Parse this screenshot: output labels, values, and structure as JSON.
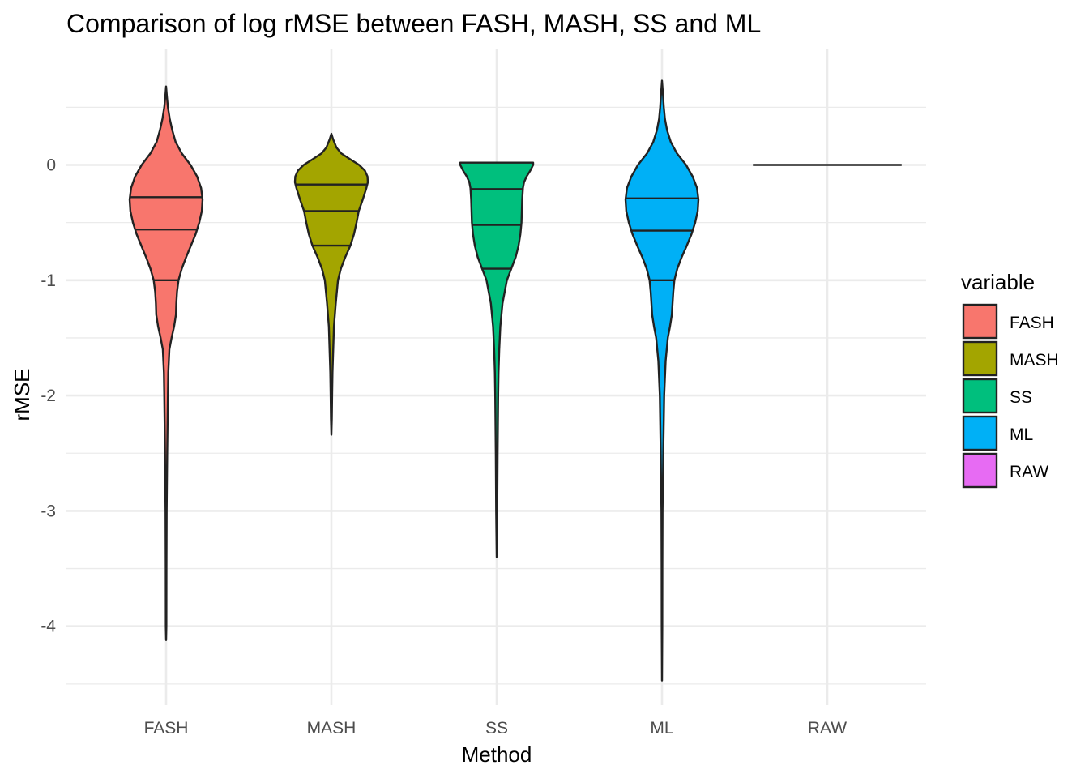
{
  "chart_data": {
    "type": "violin",
    "title": "Comparison of log rMSE between FASH, MASH, SS and ML",
    "xlabel": "Method",
    "ylabel": "rMSE",
    "categories": [
      "FASH",
      "MASH",
      "SS",
      "ML",
      "RAW"
    ],
    "y_ticks": [
      0,
      -1,
      -2,
      -3,
      -4
    ],
    "y_tick_labels": [
      "0",
      "-1",
      "-2",
      "-3",
      "-4"
    ],
    "ylim": [
      -4.7,
      0.97
    ],
    "grid": true,
    "legend": {
      "title": "variable",
      "position": "right",
      "entries": [
        "FASH",
        "MASH",
        "SS",
        "ML",
        "RAW"
      ]
    },
    "series": [
      {
        "name": "FASH",
        "color": "#F8766D",
        "min": -4.12,
        "max": 0.68,
        "quantiles": [
          -0.28,
          -0.56,
          -1.0
        ],
        "density": [
          [
            0.68,
            0.0
          ],
          [
            0.6,
            0.02
          ],
          [
            0.5,
            0.05
          ],
          [
            0.4,
            0.1
          ],
          [
            0.3,
            0.17
          ],
          [
            0.2,
            0.26
          ],
          [
            0.1,
            0.43
          ],
          [
            0.0,
            0.67
          ],
          [
            -0.1,
            0.85
          ],
          [
            -0.2,
            0.96
          ],
          [
            -0.3,
            1.0
          ],
          [
            -0.4,
            0.98
          ],
          [
            -0.5,
            0.91
          ],
          [
            -0.6,
            0.81
          ],
          [
            -0.7,
            0.68
          ],
          [
            -0.8,
            0.55
          ],
          [
            -0.9,
            0.43
          ],
          [
            -1.0,
            0.34
          ],
          [
            -1.1,
            0.3
          ],
          [
            -1.2,
            0.28
          ],
          [
            -1.3,
            0.27
          ],
          [
            -1.4,
            0.22
          ],
          [
            -1.5,
            0.15
          ],
          [
            -1.6,
            0.09
          ],
          [
            -1.8,
            0.06
          ],
          [
            -2.0,
            0.05
          ],
          [
            -2.5,
            0.03
          ],
          [
            -3.0,
            0.015
          ],
          [
            -3.5,
            0.01
          ],
          [
            -4.0,
            0.008
          ],
          [
            -4.12,
            0.0
          ]
        ]
      },
      {
        "name": "MASH",
        "color": "#A3A500",
        "min": -2.34,
        "max": 0.27,
        "quantiles": [
          -0.17,
          -0.4,
          -0.7
        ],
        "density": [
          [
            0.27,
            0.0
          ],
          [
            0.22,
            0.05
          ],
          [
            0.15,
            0.14
          ],
          [
            0.1,
            0.27
          ],
          [
            0.05,
            0.51
          ],
          [
            0.0,
            0.76
          ],
          [
            -0.05,
            0.92
          ],
          [
            -0.1,
            0.99
          ],
          [
            -0.15,
            1.0
          ],
          [
            -0.2,
            0.96
          ],
          [
            -0.3,
            0.86
          ],
          [
            -0.4,
            0.75
          ],
          [
            -0.5,
            0.69
          ],
          [
            -0.6,
            0.62
          ],
          [
            -0.7,
            0.52
          ],
          [
            -0.8,
            0.38
          ],
          [
            -0.9,
            0.26
          ],
          [
            -1.0,
            0.18
          ],
          [
            -1.2,
            0.12
          ],
          [
            -1.4,
            0.07
          ],
          [
            -1.6,
            0.05
          ],
          [
            -1.8,
            0.03
          ],
          [
            -2.0,
            0.02
          ],
          [
            -2.2,
            0.012
          ],
          [
            -2.34,
            0.0
          ]
        ]
      },
      {
        "name": "SS",
        "color": "#00BF7D",
        "min": -3.4,
        "max": 0.02,
        "quantiles": [
          -0.21,
          -0.52,
          -0.9
        ],
        "density": [
          [
            0.02,
            1.0
          ],
          [
            0.0,
            1.0
          ],
          [
            -0.05,
            0.92
          ],
          [
            -0.1,
            0.82
          ],
          [
            -0.15,
            0.75
          ],
          [
            -0.2,
            0.72
          ],
          [
            -0.3,
            0.7
          ],
          [
            -0.4,
            0.69
          ],
          [
            -0.5,
            0.68
          ],
          [
            -0.6,
            0.65
          ],
          [
            -0.7,
            0.6
          ],
          [
            -0.8,
            0.52
          ],
          [
            -0.9,
            0.4
          ],
          [
            -1.0,
            0.28
          ],
          [
            -1.2,
            0.16
          ],
          [
            -1.4,
            0.1
          ],
          [
            -1.6,
            0.07
          ],
          [
            -1.8,
            0.05
          ],
          [
            -2.0,
            0.04
          ],
          [
            -2.5,
            0.025
          ],
          [
            -3.0,
            0.015
          ],
          [
            -3.4,
            0.0
          ]
        ]
      },
      {
        "name": "ML",
        "color": "#00B0F6",
        "min": -4.47,
        "max": 0.73,
        "quantiles": [
          -0.29,
          -0.57,
          -1.0
        ],
        "density": [
          [
            0.73,
            0.0
          ],
          [
            0.6,
            0.03
          ],
          [
            0.5,
            0.05
          ],
          [
            0.4,
            0.08
          ],
          [
            0.3,
            0.14
          ],
          [
            0.2,
            0.24
          ],
          [
            0.1,
            0.41
          ],
          [
            0.0,
            0.66
          ],
          [
            -0.1,
            0.84
          ],
          [
            -0.2,
            0.96
          ],
          [
            -0.3,
            1.0
          ],
          [
            -0.4,
            0.98
          ],
          [
            -0.5,
            0.91
          ],
          [
            -0.6,
            0.81
          ],
          [
            -0.7,
            0.68
          ],
          [
            -0.8,
            0.54
          ],
          [
            -0.9,
            0.42
          ],
          [
            -1.0,
            0.34
          ],
          [
            -1.1,
            0.31
          ],
          [
            -1.2,
            0.29
          ],
          [
            -1.3,
            0.27
          ],
          [
            -1.4,
            0.22
          ],
          [
            -1.5,
            0.16
          ],
          [
            -1.7,
            0.1
          ],
          [
            -2.0,
            0.06
          ],
          [
            -2.5,
            0.035
          ],
          [
            -3.0,
            0.015
          ],
          [
            -3.5,
            0.01
          ],
          [
            -4.0,
            0.008
          ],
          [
            -4.47,
            0.0
          ]
        ]
      },
      {
        "name": "RAW",
        "color": "#E76BF3",
        "min": 0.0,
        "max": 0.0,
        "quantiles": [],
        "density": []
      }
    ]
  }
}
